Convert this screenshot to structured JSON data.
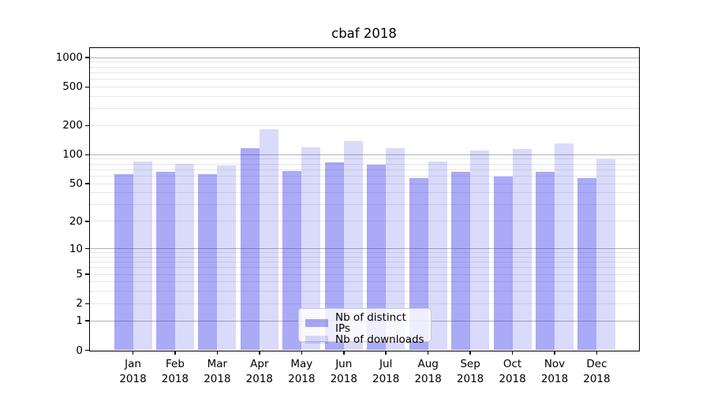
{
  "chart_data": {
    "type": "bar",
    "title": "cbaf 2018",
    "categories": [
      "Jan 2018",
      "Feb 2018",
      "Mar 2018",
      "Apr 2018",
      "May 2018",
      "Jun 2018",
      "Jul 2018",
      "Aug 2018",
      "Sep 2018",
      "Oct 2018",
      "Nov 2018",
      "Dec 2018"
    ],
    "series": [
      {
        "name": "Nb of distinct IPs",
        "color": "rgba(25,25,230,0.37)",
        "values": [
          63,
          67,
          63,
          117,
          68,
          83,
          79,
          57,
          67,
          59,
          67,
          57
        ]
      },
      {
        "name": "Nb of downloads",
        "color": "rgba(25,25,230,0.16)",
        "values": [
          85,
          80,
          78,
          185,
          119,
          138,
          117,
          85,
          111,
          115,
          131,
          90
        ]
      }
    ],
    "yticks": [
      0,
      1,
      2,
      5,
      10,
      20,
      50,
      100,
      200,
      500,
      1000
    ],
    "yscale": "log10(1+v)",
    "ylim": [
      0,
      1260
    ],
    "grid": "horizontal major and minor gridlines",
    "legend_position": "lower center inside plot"
  }
}
